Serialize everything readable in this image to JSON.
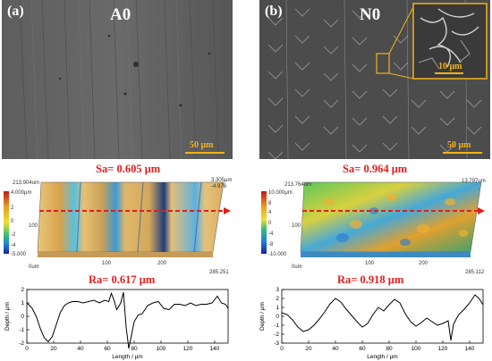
{
  "figure": {
    "left": {
      "letter": "(a)",
      "sample": "A0",
      "scale_label": "50 μm",
      "sa_label": "Sa= 0.605 μm",
      "ra_label": "Ra= 0.617 μm",
      "map": {
        "top_y": "213.904um",
        "top_right": "3.305μm",
        "right_neg": "-4.978",
        "x_end": "285.251",
        "x_mid": "100",
        "x_200": "200",
        "y_100": "100",
        "origin": "0um",
        "colorbar_ticks": [
          "4.000",
          "2",
          "0",
          "-2",
          "-4",
          "-5.000"
        ]
      }
    },
    "right": {
      "letter": "(b)",
      "sample": "N0",
      "scale_label": "50 μm",
      "inset_scale_label": "10 μm",
      "sa_label": "Sa= 0.964 μm",
      "ra_label": "Ra= 0.918 μm",
      "map": {
        "top_y": "213.764um",
        "top_right": "13.797um",
        "x_end": "285.112",
        "x_mid": "100",
        "x_200": "200",
        "y_100": "100",
        "origin": "0um",
        "colorbar_ticks": [
          "10.000",
          "8",
          "6",
          "4",
          "2",
          "0",
          "-2",
          "-4",
          "-6",
          "-8",
          "-10.000"
        ]
      }
    }
  },
  "chart_data": [
    {
      "type": "line",
      "title": "",
      "xlabel": "Length / μm",
      "ylabel": "Depth / μm",
      "xlim": [
        0,
        150
      ],
      "ylim": [
        -2,
        2
      ],
      "xticks": [
        0,
        20,
        40,
        60,
        80,
        100,
        120,
        140
      ],
      "yticks": [
        -2,
        -1,
        0,
        1,
        2
      ],
      "grid": false,
      "series": [
        {
          "x": [
            0,
            4,
            7,
            10,
            13,
            16,
            19,
            22,
            25,
            28,
            31,
            34,
            38,
            42,
            46,
            50,
            54,
            58,
            61,
            63,
            65,
            67,
            70,
            72,
            74,
            76,
            78,
            80,
            83,
            86,
            90,
            94,
            98,
            102,
            106,
            110,
            114,
            118,
            122,
            126,
            130,
            134,
            138,
            142,
            145,
            148,
            150
          ],
          "y": [
            1.0,
            0.6,
            0.0,
            -0.9,
            -1.6,
            -1.9,
            -1.5,
            -0.6,
            0.3,
            0.8,
            1.0,
            1.1,
            1.1,
            1.0,
            1.1,
            1.2,
            1.0,
            1.2,
            1.1,
            1.7,
            1.2,
            0.5,
            1.0,
            1.8,
            -0.8,
            -2.4,
            -1.4,
            -0.4,
            0.1,
            0.2,
            0.8,
            1.0,
            1.1,
            0.6,
            0.5,
            0.9,
            0.9,
            0.8,
            1.0,
            0.8,
            0.9,
            0.9,
            1.0,
            1.5,
            1.0,
            0.9,
            0.6
          ]
        }
      ]
    },
    {
      "type": "line",
      "title": "",
      "xlabel": "Length / μm",
      "ylabel": "Depth / μm",
      "xlim": [
        0,
        150
      ],
      "ylim": [
        -3,
        3
      ],
      "xticks": [
        0,
        20,
        40,
        60,
        80,
        100,
        120,
        140
      ],
      "yticks": [
        -3,
        -2,
        -1,
        0,
        1,
        2,
        3
      ],
      "grid": false,
      "series": [
        {
          "x": [
            0,
            4,
            8,
            12,
            16,
            20,
            24,
            28,
            32,
            36,
            40,
            44,
            48,
            52,
            56,
            60,
            64,
            68,
            72,
            76,
            80,
            84,
            88,
            92,
            96,
            100,
            104,
            108,
            112,
            116,
            120,
            124,
            126,
            128,
            130,
            132,
            136,
            140,
            144,
            147,
            150
          ],
          "y": [
            0.4,
            0.2,
            -0.4,
            -1.2,
            -1.7,
            -1.5,
            -1.0,
            -0.3,
            0.5,
            1.4,
            2.0,
            1.6,
            0.8,
            0.1,
            -0.6,
            -1.2,
            -0.8,
            0.2,
            1.0,
            0.6,
            1.3,
            1.9,
            1.5,
            0.3,
            -0.6,
            -1.1,
            -0.7,
            -0.2,
            -0.6,
            -1.0,
            -0.8,
            -0.5,
            -2.7,
            -0.9,
            -0.3,
            0.2,
            0.8,
            1.5,
            2.4,
            2.0,
            1.3
          ]
        }
      ]
    }
  ]
}
